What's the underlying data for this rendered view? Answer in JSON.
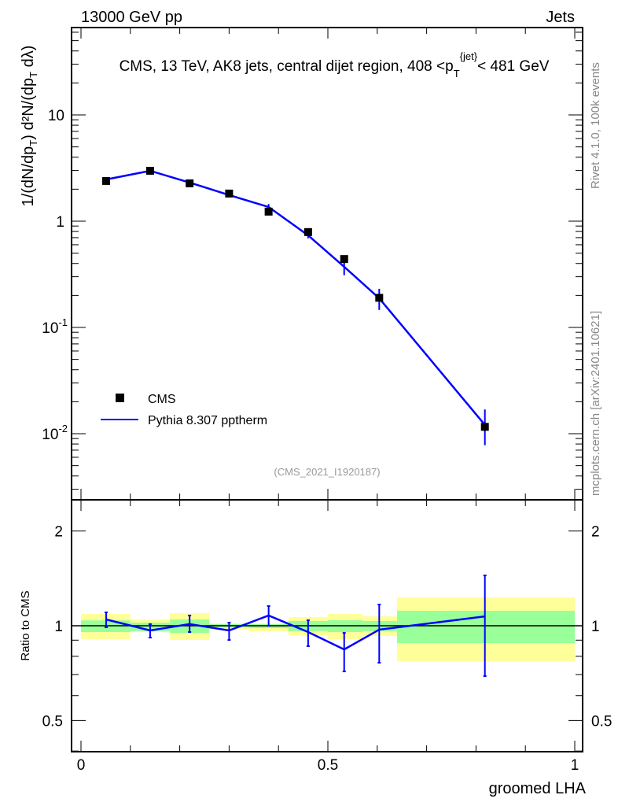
{
  "header": {
    "left": "13000 GeV pp",
    "right": "Jets"
  },
  "side": {
    "rivet": "Rivet 4.1.0,  100k events",
    "mcplots": "mcplots.cern.ch [arXiv:2401.10621]"
  },
  "chart_data": [
    {
      "type": "scatter",
      "title": "CMS, 13 TeV, AK8 jets, central dijet region, 408 <p_T^{jet}< 481 GeV",
      "ylabel": "1/(dN/dp_T) d²N/(dp_T dλ)",
      "yscale": "log",
      "ylim": [
        0.0027,
        60
      ],
      "ytick_labels": [
        "10^-2",
        "10^-1",
        "1",
        "10"
      ],
      "yticks": [
        0.01,
        0.1,
        1,
        10
      ],
      "watermark": "(CMS_2021_I1920187)",
      "legend": {
        "placement": "bottom-left",
        "entries": [
          "CMS",
          "Pythia 8.307 pptherm"
        ]
      },
      "x": [
        0.051,
        0.14,
        0.22,
        0.3,
        0.38,
        0.46,
        0.533,
        0.604,
        0.818
      ],
      "series": [
        {
          "name": "CMS",
          "values": [
            2.39,
            2.98,
            2.27,
            1.82,
            1.23,
            0.79,
            0.44,
            0.19,
            0.0116
          ],
          "color": "#000000"
        },
        {
          "name": "Pythia 8.307 pptherm",
          "values": [
            2.47,
            2.98,
            2.31,
            1.76,
            1.36,
            0.736,
            0.372,
            0.188,
            0.0121
          ],
          "err_low": [
            2.4,
            2.9,
            2.25,
            1.68,
            1.19,
            0.69,
            0.31,
            0.146,
            0.0078
          ],
          "err_high": [
            2.55,
            3.05,
            2.38,
            1.85,
            1.45,
            0.83,
            0.43,
            0.231,
            0.0169
          ],
          "color": "#0000ff"
        }
      ]
    },
    {
      "type": "line",
      "ylabel": "Ratio to CMS",
      "xlabel": "groomed LHA",
      "yscale": "log",
      "ylim": [
        0.398,
        2.51
      ],
      "ytick_labels": [
        "0.5",
        "1",
        "2"
      ],
      "yticks": [
        0.5,
        1,
        2
      ],
      "xtick_labels": [
        "0",
        "0.5",
        "1"
      ],
      "xticks": [
        0,
        0.5,
        1
      ],
      "xlim": [
        -0.02,
        1.015
      ],
      "bin_edges": [
        0,
        0.1,
        0.18,
        0.26,
        0.34,
        0.42,
        0.5,
        0.57,
        0.64,
        1.0
      ],
      "band_outer": [
        [
          0.907,
          1.09
        ],
        [
          0.955,
          1.047
        ],
        [
          0.901,
          1.096
        ],
        [
          0.977,
          1.017
        ],
        [
          0.961,
          1.017
        ],
        [
          0.933,
          1.065
        ],
        [
          0.907,
          1.09
        ],
        [
          0.928,
          1.071
        ],
        [
          0.772,
          1.23
        ]
      ],
      "band_inner": [
        [
          0.955,
          1.04
        ],
        [
          0.961,
          1.023
        ],
        [
          0.949,
          1.047
        ],
        [
          0.989,
          1.012
        ],
        [
          0.983,
          1.012
        ],
        [
          0.961,
          1.035
        ],
        [
          0.955,
          1.041
        ],
        [
          0.961,
          1.035
        ],
        [
          0.881,
          1.116
        ]
      ],
      "x": [
        0.051,
        0.14,
        0.22,
        0.3,
        0.38,
        0.46,
        0.533,
        0.604,
        0.818
      ],
      "values": [
        1.047,
        0.966,
        1.012,
        0.966,
        1.078,
        0.955,
        0.841,
        0.972,
        1.071
      ],
      "err_low": [
        0.989,
        0.917,
        0.955,
        0.901,
        1.0,
        0.861,
        0.716,
        0.763,
        0.692
      ],
      "err_high": [
        1.103,
        1.012,
        1.078,
        1.023,
        1.155,
        1.041,
        0.949,
        1.168,
        1.445
      ]
    }
  ],
  "colors": {
    "outer": "#ffff99",
    "inner": "#99ff99",
    "mc": "#0000ff",
    "data": "#000000"
  }
}
